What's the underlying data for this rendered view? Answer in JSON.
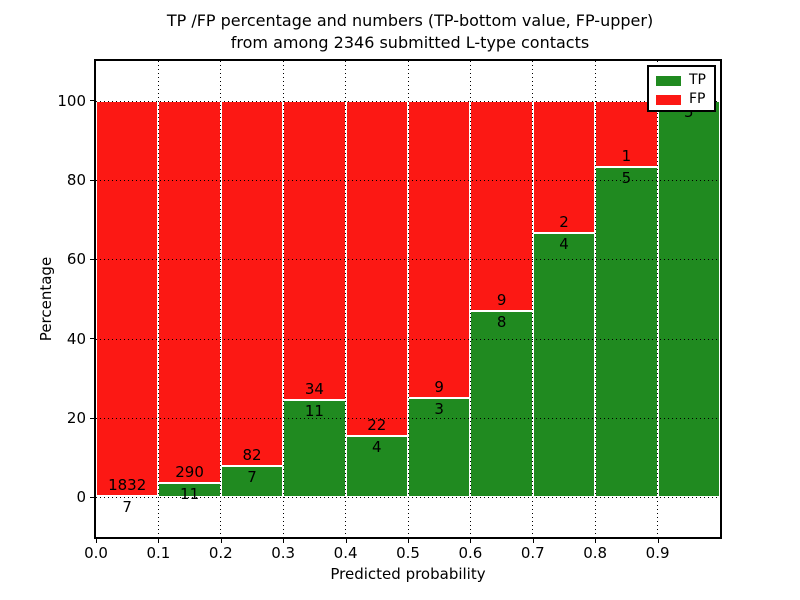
{
  "title": {
    "line1": "TP /FP percentage and numbers (TP-bottom value, FP-upper)",
    "line2": "from among 2346 submitted L-type contacts"
  },
  "axes": {
    "x_label": "Predicted probability",
    "y_label": "Percentage",
    "x_ticks": [
      "0.0",
      "0.1",
      "0.2",
      "0.3",
      "0.4",
      "0.5",
      "0.6",
      "0.7",
      "0.8",
      "0.9"
    ],
    "y_ticks": [
      "0",
      "20",
      "40",
      "60",
      "80",
      "100"
    ]
  },
  "legend": {
    "items": [
      {
        "label": "TP",
        "color": "#208a20"
      },
      {
        "label": "FP",
        "color": "#fc1814"
      }
    ]
  },
  "colors": {
    "tp": "#208a20",
    "fp": "#fc1814",
    "grid": "#000000",
    "background": "#ffffff"
  },
  "chart_data": {
    "type": "bar",
    "stacked": true,
    "normalized_to_percent": true,
    "title": "TP /FP percentage and numbers (TP-bottom value, FP-upper) from among 2346 submitted L-type contacts",
    "xlabel": "Predicted probability",
    "ylabel": "Percentage",
    "total_submitted": 2346,
    "bin_width": 0.1,
    "bin_starts": [
      0.0,
      0.1,
      0.2,
      0.3,
      0.4,
      0.5,
      0.6,
      0.7,
      0.8,
      0.9
    ],
    "series": [
      {
        "name": "TP",
        "counts": [
          7,
          11,
          7,
          11,
          4,
          3,
          8,
          4,
          5,
          5
        ]
      },
      {
        "name": "FP",
        "counts": [
          1832,
          290,
          82,
          34,
          22,
          9,
          9,
          2,
          1,
          0
        ]
      }
    ],
    "bar_annotation_rule": "FP count printed above TP/FP boundary, TP count below",
    "xlim": [
      0.0,
      1.0
    ],
    "ylim": [
      -10,
      110
    ],
    "grid": "dotted",
    "legend_position": "upper right"
  }
}
